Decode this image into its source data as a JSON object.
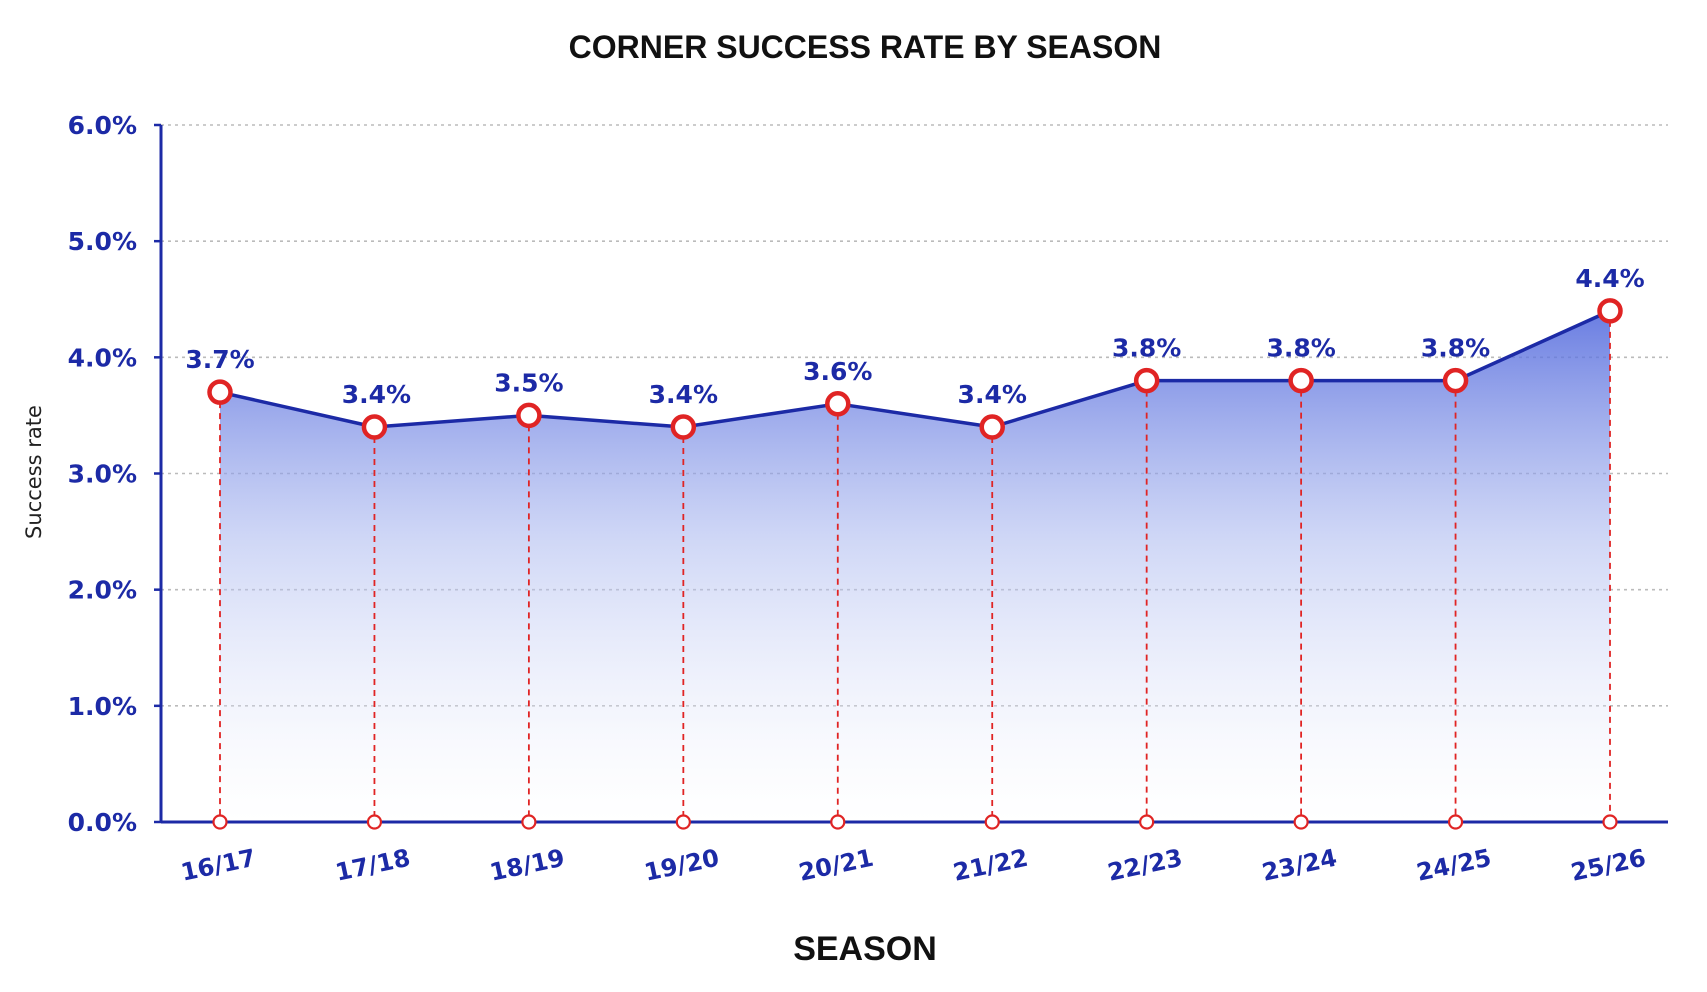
{
  "chart_data": {
    "type": "area",
    "title": "CORNER SUCCESS RATE BY SEASON",
    "xlabel": "SEASON",
    "ylabel": "Success rate",
    "categories": [
      "16/17",
      "17/18",
      "18/19",
      "19/20",
      "20/21",
      "21/22",
      "22/23",
      "23/24",
      "24/25",
      "25/26"
    ],
    "values": [
      3.7,
      3.4,
      3.5,
      3.4,
      3.6,
      3.4,
      3.8,
      3.8,
      3.8,
      4.4
    ],
    "value_labels": [
      "3.7%",
      "3.4%",
      "3.5%",
      "3.4%",
      "3.6%",
      "3.4%",
      "3.8%",
      "3.8%",
      "3.8%",
      "4.4%"
    ],
    "yticks": [
      0,
      1,
      2,
      3,
      4,
      5,
      6
    ],
    "ytick_labels": [
      "0.0%",
      "1.0%",
      "2.0%",
      "3.0%",
      "4.0%",
      "5.0%",
      "6.0%"
    ],
    "ylim": [
      0,
      6
    ],
    "grid": true,
    "legend": "none",
    "colors": {
      "line": "#1c2aa6",
      "axis": "#1c2aa6",
      "fill_top": "#5b72e0",
      "fill_bottom": "#ffffff",
      "marker": "#e02424",
      "dropline": "#e02424",
      "grid": "#bbbbbb",
      "text": "#111111"
    }
  }
}
